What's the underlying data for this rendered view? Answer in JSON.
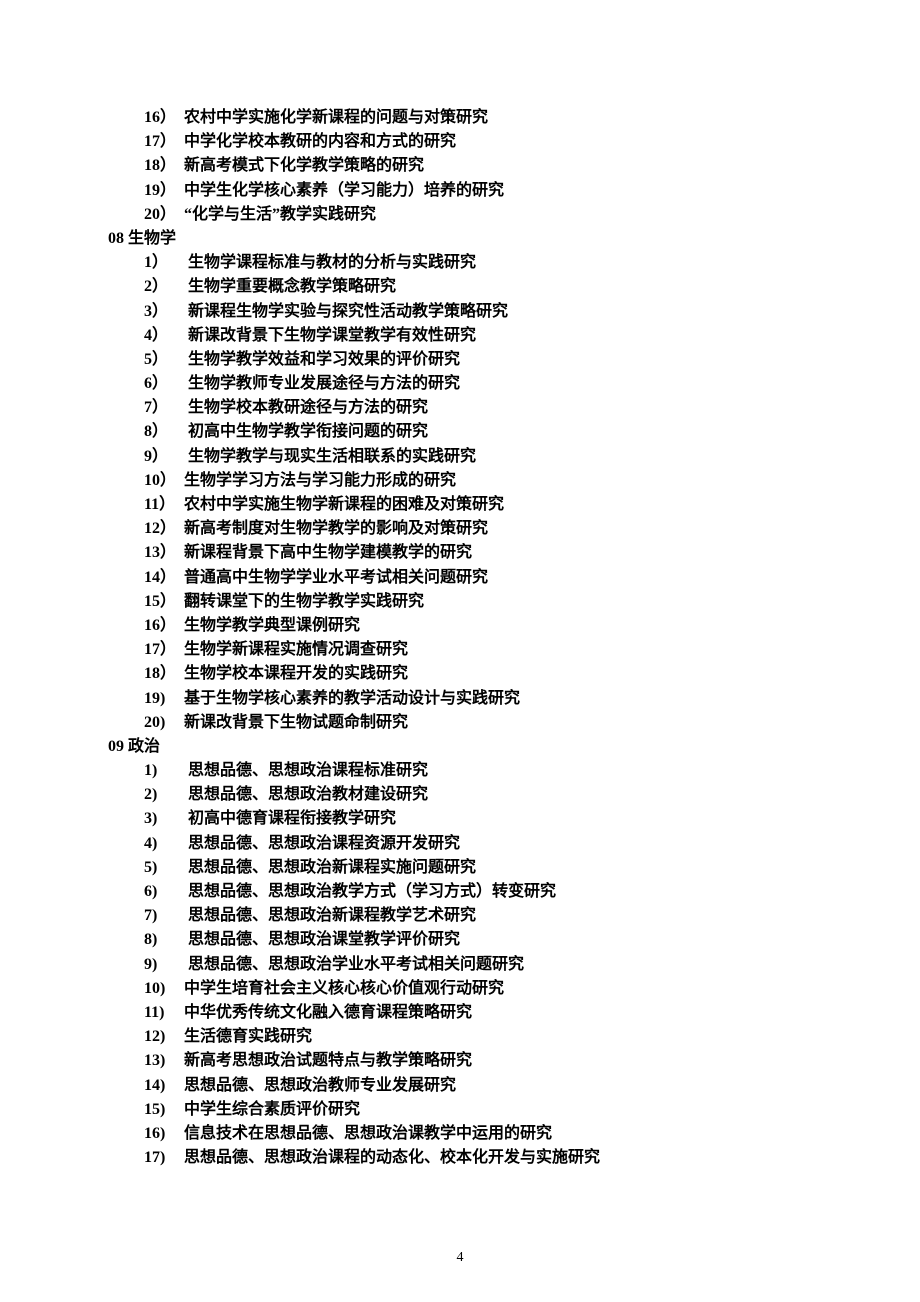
{
  "page_number": "4",
  "sections": {
    "intro_items": [
      {
        "num": "16）",
        "text": "农村中学实施化学新课程的问题与对策研究"
      },
      {
        "num": "17）",
        "text": "中学化学校本教研的内容和方式的研究"
      },
      {
        "num": "18）",
        "text": "新高考模式下化学教学策略的研究"
      },
      {
        "num": "19）",
        "text": "中学生化学核心素养（学习能力）培养的研究"
      },
      {
        "num": "20）",
        "text": "“化学与生活”教学实践研究"
      }
    ],
    "s08": {
      "heading": "08 生物学",
      "items": [
        {
          "num": "1）",
          "text": "生物学课程标准与教材的分析与实践研究",
          "wide": true
        },
        {
          "num": "2）",
          "text": "生物学重要概念教学策略研究",
          "wide": true
        },
        {
          "num": "3）",
          "text": "新课程生物学实验与探究性活动教学策略研究",
          "wide": true
        },
        {
          "num": "4）",
          "text": "新课改背景下生物学课堂教学有效性研究",
          "wide": true
        },
        {
          "num": "5）",
          "text": "生物学教学效益和学习效果的评价研究",
          "wide": true
        },
        {
          "num": "6）",
          "text": "生物学教师专业发展途径与方法的研究",
          "wide": true
        },
        {
          "num": "7）",
          "text": "生物学校本教研途径与方法的研究",
          "wide": true
        },
        {
          "num": "8）",
          "text": "初高中生物学教学衔接问题的研究",
          "wide": true
        },
        {
          "num": "9）",
          "text": "生物学教学与现实生活相联系的实践研究",
          "wide": true
        },
        {
          "num": "10）",
          "text": "生物学学习方法与学习能力形成的研究"
        },
        {
          "num": "11）",
          "text": "农村中学实施生物学新课程的困难及对策研究"
        },
        {
          "num": "12）",
          "text": "新高考制度对生物学教学的影响及对策研究"
        },
        {
          "num": "13）",
          "text": "新课程背景下高中生物学建模教学的研究"
        },
        {
          "num": "14）",
          "text": "普通高中生物学学业水平考试相关问题研究"
        },
        {
          "num": "15）",
          "text": "翻转课堂下的生物学教学实践研究"
        },
        {
          "num": "16）",
          "text": "生物学教学典型课例研究"
        },
        {
          "num": "17）",
          "text": "生物学新课程实施情况调查研究"
        },
        {
          "num": "18）",
          "text": "生物学校本课程开发的实践研究"
        },
        {
          "num": "19)",
          "text": "基于生物学核心素养的教学活动设计与实践研究"
        },
        {
          "num": "20)",
          "text": "新课改背景下生物试题命制研究"
        }
      ]
    },
    "s09": {
      "heading": "09 政治",
      "items": [
        {
          "num": "1)",
          "text": "思想品德、思想政治课程标准研究",
          "wide": true
        },
        {
          "num": "2)",
          "text": "思想品德、思想政治教材建设研究",
          "wide": true
        },
        {
          "num": "3)",
          "text": "初高中德育课程衔接教学研究",
          "wide": true
        },
        {
          "num": "4)",
          "text": "思想品德、思想政治课程资源开发研究",
          "wide": true
        },
        {
          "num": "5)",
          "text": "思想品德、思想政治新课程实施问题研究",
          "wide": true
        },
        {
          "num": "6)",
          "text": "思想品德、思想政治教学方式（学习方式）转变研究",
          "wide": true
        },
        {
          "num": "7)",
          "text": "思想品德、思想政治新课程教学艺术研究",
          "wide": true
        },
        {
          "num": "8)",
          "text": "思想品德、思想政治课堂教学评价研究",
          "wide": true
        },
        {
          "num": "9)",
          "text": "思想品德、思想政治学业水平考试相关问题研究",
          "wide": true
        },
        {
          "num": "10)",
          "text": "中学生培育社会主义核心核心价值观行动研究"
        },
        {
          "num": "11)",
          "text": "中华优秀传统文化融入德育课程策略研究"
        },
        {
          "num": "12)",
          "text": "生活德育实践研究"
        },
        {
          "num": "13)",
          "text": "新高考思想政治试题特点与教学策略研究"
        },
        {
          "num": "14)",
          "text": "思想品德、思想政治教师专业发展研究"
        },
        {
          "num": "15)",
          "text": "中学生综合素质评价研究"
        },
        {
          "num": "16)",
          "text": "信息技术在思想品德、思想政治课教学中运用的研究"
        },
        {
          "num": "17)",
          "text": "思想品德、思想政治课程的动态化、校本化开发与实施研究"
        }
      ]
    }
  }
}
